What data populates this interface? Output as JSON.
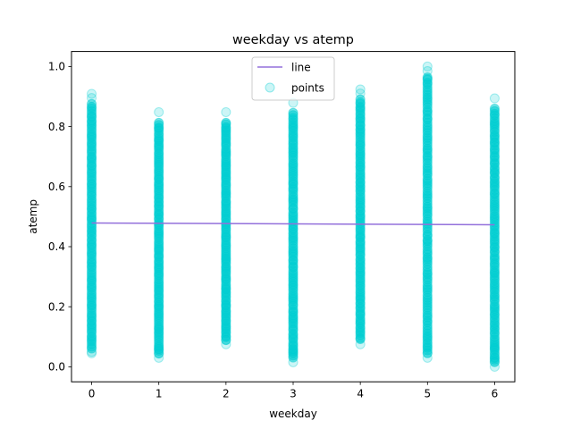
{
  "chart_data": {
    "type": "scatter",
    "title": "weekday vs atemp",
    "xlabel": "weekday",
    "ylabel": "atemp",
    "xlim": [
      -0.3,
      6.3
    ],
    "ylim": [
      -0.05,
      1.05
    ],
    "xticks": [
      "0",
      "1",
      "2",
      "3",
      "4",
      "5",
      "6"
    ],
    "yticks": [
      "0.0",
      "0.2",
      "0.4",
      "0.6",
      "0.8",
      "1.0"
    ],
    "grid": false,
    "legend_position": "upper center",
    "series": [
      {
        "name": "line",
        "kind": "line",
        "color": "#9370db",
        "x": [
          0,
          6
        ],
        "y": [
          0.479,
          0.473
        ]
      },
      {
        "name": "points",
        "kind": "scatter",
        "color": "#00ced1",
        "opacity": 0.2,
        "groups": [
          {
            "x": 0,
            "min": 0.045,
            "max": 0.909,
            "outliers": [
              0.909,
              0.895,
              0.045,
              0.05
            ]
          },
          {
            "x": 1,
            "min": 0.03,
            "max": 0.848,
            "outliers": [
              0.848,
              0.03,
              0.045,
              0.06
            ]
          },
          {
            "x": 2,
            "min": 0.075,
            "max": 0.848,
            "outliers": [
              0.848,
              0.075,
              0.09
            ]
          },
          {
            "x": 3,
            "min": 0.015,
            "max": 0.879,
            "outliers": [
              0.879,
              0.015,
              0.045,
              0.06
            ]
          },
          {
            "x": 4,
            "min": 0.075,
            "max": 0.924,
            "outliers": [
              0.924,
              0.91,
              0.075
            ]
          },
          {
            "x": 5,
            "min": 0.03,
            "max": 1.0,
            "outliers": [
              1.0,
              0.985,
              0.955,
              0.03,
              0.045,
              0.075
            ]
          },
          {
            "x": 6,
            "min": 0.0,
            "max": 0.894,
            "outliers": [
              0.894,
              0.0,
              0.015,
              0.03,
              0.06
            ]
          }
        ]
      }
    ]
  }
}
